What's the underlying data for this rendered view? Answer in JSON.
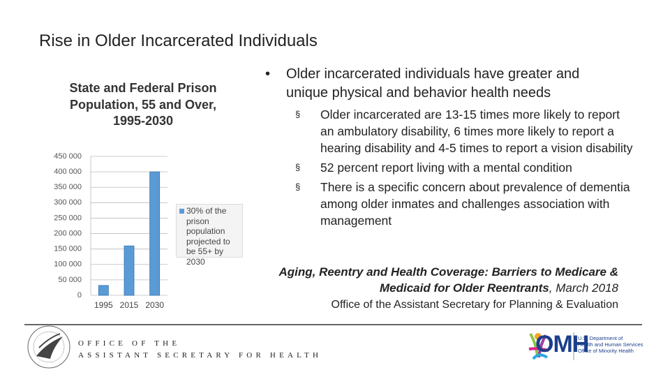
{
  "title": "Rise in Older Incarcerated Individuals",
  "chart_data": {
    "type": "bar",
    "title": "State and Federal Prison Population, 55 and Over, 1995-2030",
    "categories": [
      "1995",
      "2015",
      "2030"
    ],
    "series": [
      {
        "name": "30% of the prison population projected to be 55+ by 2030",
        "color": "#5b9bd5",
        "values": [
          32000,
          160000,
          400000
        ]
      }
    ],
    "ylim": [
      0,
      450000
    ],
    "yticks": [
      0,
      {
        "value": 50000,
        "label": "50 000"
      },
      {
        "value": 100000,
        "label": "100 000"
      },
      {
        "value": 150000,
        "label": "150 000"
      },
      {
        "value": 200000,
        "label": "200 000"
      },
      {
        "value": 250000,
        "label": "250 000"
      },
      {
        "value": 300000,
        "label": "300 000"
      },
      {
        "value": 350000,
        "label": "350 000"
      },
      {
        "value": 400000,
        "label": "400 000"
      },
      {
        "value": 450000,
        "label": "450 000"
      }
    ],
    "grid": true,
    "legend": "right"
  },
  "bullets": [
    {
      "text": "Older incarcerated individuals have greater and unique physical and behavior health needs",
      "sub": [
        "Older incarcerated are 13-15 times more likely to report an ambulatory disability, 6 times more likely to report a hearing disability and 4-5 times to report a vision disability",
        "52 percent report living with a mental condition",
        "There is a specific concern about prevalence of dementia among older inmates and challenges association with management"
      ]
    }
  ],
  "citation": {
    "title": "Aging, Reentry and Health Coverage: Barriers to Medicare & Medicaid for Older Reentrants",
    "date": ", March 2018",
    "source": "Office of the Assistant Secretary for Planning & Evaluation"
  },
  "footer": {
    "line1": "OFFICE OF THE",
    "line2": "ASSISTANT SECRETARY FOR HEALTH",
    "logo": "OMH",
    "logo_text": [
      "U.S. Department of",
      "Health and Human Services",
      "Office of Minority Health"
    ]
  }
}
